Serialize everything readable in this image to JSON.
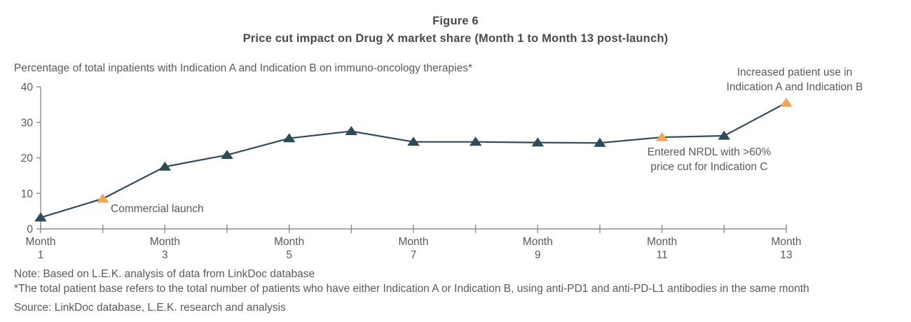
{
  "chart_data": {
    "type": "line",
    "title": "Figure 6",
    "subtitle": "Price cut impact on Drug X market share (Month 1 to Month 13 post-launch)",
    "ylabel": "Percentage of total inpatients with Indication A and Indication B on immuno-oncology therapies*",
    "xlabel": "",
    "x_unit": "Month",
    "x": [
      1,
      2,
      3,
      4,
      5,
      6,
      7,
      8,
      9,
      10,
      11,
      12,
      13
    ],
    "series": [
      {
        "name": "Drug X market share (% of total inpatients)",
        "values": [
          3.2,
          8.5,
          17.5,
          20.8,
          25.5,
          27.5,
          24.5,
          24.5,
          24.3,
          24.2,
          25.8,
          26.2,
          35.5
        ]
      }
    ],
    "ylim": [
      0,
      40
    ],
    "yticks": [
      0,
      10,
      20,
      30,
      40
    ],
    "x_tick_months": [
      1,
      3,
      5,
      7,
      9,
      11,
      13
    ],
    "grid": false,
    "legend": "none",
    "marker": "triangle-up",
    "line_color": "#2d4a59",
    "marker_color": "#2d4a59",
    "highlight_marker_color": "#f3a557",
    "highlight_months": [
      2,
      11,
      13
    ],
    "axis_color": "#8c8c8c",
    "annotations": {
      "commercial_launch": {
        "month": 2,
        "line1": "Commercial launch"
      },
      "nrdl": {
        "month": 11,
        "line1": "Entered NRDL with >60%",
        "line2": "price cut for Indication C"
      },
      "increased_use": {
        "month": 13,
        "line1": "Increased patient use in",
        "line2": "Indication A and Indication B"
      }
    }
  },
  "notes": {
    "note": "Note: Based on L.E.K. analysis of data from LinkDoc database",
    "asterisk": "*The total patient base refers to the total number of patients who have either Indication A or Indication B, using anti-PD1 and anti-PD-L1 antibodies in the same month",
    "source": "Source: LinkDoc database, L.E.K. research and analysis"
  }
}
